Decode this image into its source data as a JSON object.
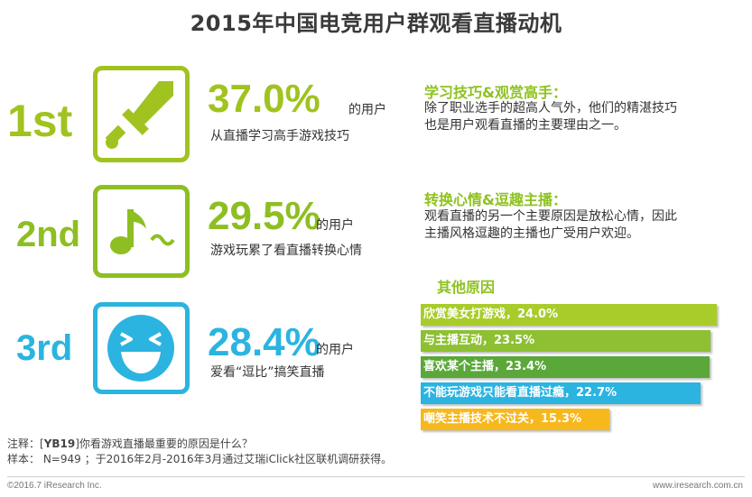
{
  "title": "2015年中国电竞用户群观看直播动机",
  "ranks": [
    {
      "rank": "1st",
      "percent": "37.0%",
      "suffix": "的用户",
      "desc": "从直播学习高手游戏技巧",
      "icon": "sword-icon",
      "color": "#a0c31f"
    },
    {
      "rank": "2nd",
      "percent": "29.5%",
      "suffix": "的用户",
      "desc": "游戏玩累了看直播转换心情",
      "icon": "music-note-icon",
      "color": "#8dbe22"
    },
    {
      "rank": "3rd",
      "percent": "28.4%",
      "suffix": "的用户",
      "desc": "爱看“逗比”搞笑直播",
      "icon": "laughing-face-icon",
      "color": "#2bb4e0"
    }
  ],
  "reasons": [
    {
      "title": "学习技巧&观赏高手：",
      "line1": "除了职业选手的超高人气外，他们的精湛技巧",
      "line2": "也是用户观看直播的主要理由之一。"
    },
    {
      "title": "转换心情&逗趣主播：",
      "line1": "观看直播的另一个主要原因是放松心情，因此",
      "line2": "主播风格逗趣的主播也广受用户欢迎。"
    }
  ],
  "other_title": "其他原因",
  "chart_data": {
    "type": "bar",
    "orientation": "horizontal",
    "title": "其他原因",
    "categories": [
      "欣赏美女打游戏",
      "与主播互动",
      "喜欢某个主播",
      "不能玩游戏只能看直播过瘾",
      "嘲笑主播技术不过关"
    ],
    "values": [
      24.0,
      23.5,
      23.4,
      22.7,
      15.3
    ],
    "labels": [
      "欣赏美女打游戏，24.0%",
      "与主播互动，23.5%",
      "喜欢某个主播，23.4%",
      "不能玩游戏只能看直播过瘾，22.7%",
      "嘲笑主播技术不过关，15.3%"
    ],
    "colors": [
      "#a8cc2a",
      "#8dc032",
      "#5aa83a",
      "#2bb4e0",
      "#f6b81c"
    ],
    "grid": false,
    "legend": "none"
  },
  "note": {
    "prefix": "注释：[",
    "code": "YB19",
    "question": "]你看游戏直播最重要的原因是什么？",
    "sample": "样本： N=949 ；于2016年2月-2016年3月通过艾瑞iClick社区联机调研获得。"
  },
  "footer": {
    "left": "©2016.7 iResearch Inc.",
    "right": "www.iresearch.com.cn"
  }
}
